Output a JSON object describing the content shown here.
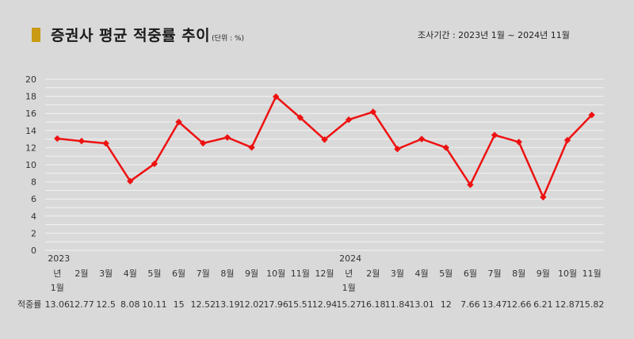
{
  "header": {
    "title": "증권사 평균 적중률 추이",
    "subtitle": "(단위 : %)",
    "period": "조사기간 : 2023년 1월 ~ 2024년 11월"
  },
  "colors": {
    "line": "#ee1111",
    "marker": "#ee1111",
    "title_marker": "#c99a12",
    "background": "#d9d9d9"
  },
  "chart_data": {
    "type": "line",
    "title": "증권사 평균 적중률 추이",
    "ylim": [
      0,
      20
    ],
    "yticks": [
      0,
      2,
      4,
      6,
      8,
      10,
      12,
      14,
      16,
      18,
      20
    ],
    "grid": true,
    "years": [
      {
        "label": "2023",
        "index": 0
      },
      {
        "label": "2024",
        "index": 12
      }
    ],
    "categories": [
      [
        "년",
        "1월"
      ],
      [
        "2월"
      ],
      [
        "3월"
      ],
      [
        "4월"
      ],
      [
        "5월"
      ],
      [
        "6월"
      ],
      [
        "7월"
      ],
      [
        "8월"
      ],
      [
        "9월"
      ],
      [
        "10월"
      ],
      [
        "11월"
      ],
      [
        "12월"
      ],
      [
        "년",
        "1월"
      ],
      [
        "2월"
      ],
      [
        "3월"
      ],
      [
        "4월"
      ],
      [
        "5월"
      ],
      [
        "6월"
      ],
      [
        "7월"
      ],
      [
        "8월"
      ],
      [
        "9월"
      ],
      [
        "10월"
      ],
      [
        "11월"
      ]
    ],
    "row_label": "적중률",
    "value_labels": [
      "13.06",
      "12.77",
      "12.5",
      "8.08",
      "10.11",
      "15",
      "12.52",
      "13.19",
      "12.02",
      "17.96",
      "15.51",
      "12.94",
      "15.27",
      "16.18",
      "11.84",
      "13.01",
      "12",
      "7.66",
      "13.47",
      "12.66",
      "6.21",
      "12.87",
      "15.82"
    ],
    "values": [
      13.06,
      12.77,
      12.5,
      8.08,
      10.11,
      15,
      12.52,
      13.19,
      12.02,
      17.96,
      15.51,
      12.94,
      15.27,
      16.18,
      11.84,
      13.01,
      12,
      7.66,
      13.47,
      12.66,
      6.21,
      12.87,
      15.82
    ]
  }
}
